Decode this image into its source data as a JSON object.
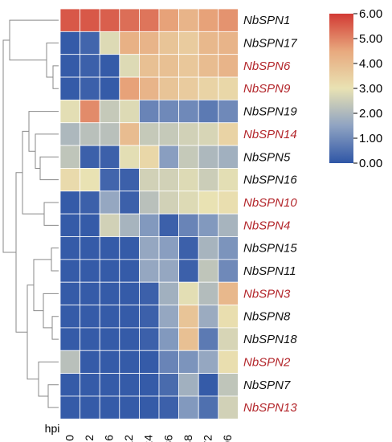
{
  "chart_data": {
    "type": "heatmap",
    "title": "",
    "xlabel": "hpi",
    "ylabel": "",
    "x": [
      "0",
      "2",
      "6",
      "12",
      "24",
      "36",
      "48",
      "72",
      "96"
    ],
    "rows": [
      {
        "gene": "NbSPN1",
        "highlight": false,
        "values": [
          5.6,
          5.6,
          5.5,
          5.3,
          5.2,
          4.6,
          4.2,
          4.6,
          4.8
        ]
      },
      {
        "gene": "NbSPN17",
        "highlight": false,
        "values": [
          0.1,
          0.3,
          2.8,
          4.3,
          4.2,
          3.8,
          3.6,
          4.1,
          4.2
        ]
      },
      {
        "gene": "NbSPN6",
        "highlight": true,
        "values": [
          0.1,
          0.2,
          0.1,
          2.8,
          3.9,
          3.9,
          3.7,
          4.0,
          4.2
        ]
      },
      {
        "gene": "NbSPN9",
        "highlight": true,
        "values": [
          0.1,
          0.2,
          0.1,
          4.6,
          4.2,
          3.8,
          3.6,
          3.4,
          3.3
        ]
      },
      {
        "gene": "NbSPN19",
        "highlight": false,
        "values": [
          2.9,
          4.9,
          2.4,
          2.8,
          0.9,
          1.0,
          1.0,
          0.7,
          1.0
        ]
      },
      {
        "gene": "NbSPN14",
        "highlight": true,
        "values": [
          2.0,
          2.2,
          2.2,
          4.0,
          2.4,
          2.4,
          2.6,
          2.7,
          3.4
        ]
      },
      {
        "gene": "NbSPN5",
        "highlight": false,
        "values": [
          2.3,
          0.2,
          0.2,
          2.9,
          3.3,
          1.4,
          2.4,
          2.0,
          1.8
        ]
      },
      {
        "gene": "NbSPN16",
        "highlight": false,
        "values": [
          3.2,
          3.0,
          0.3,
          0.2,
          2.6,
          2.6,
          2.8,
          2.5,
          2.9
        ]
      },
      {
        "gene": "NbSPN10",
        "highlight": true,
        "values": [
          0.1,
          0.2,
          1.6,
          0.2,
          2.2,
          2.6,
          2.8,
          3.0,
          3.1
        ]
      },
      {
        "gene": "NbSPN4",
        "highlight": true,
        "values": [
          0.1,
          0.1,
          2.6,
          1.9,
          1.3,
          0.2,
          0.9,
          1.3,
          1.9
        ]
      },
      {
        "gene": "NbSPN15",
        "highlight": false,
        "values": [
          0.1,
          0.1,
          0.1,
          0.1,
          1.6,
          1.4,
          0.2,
          1.9,
          1.2
        ]
      },
      {
        "gene": "NbSPN11",
        "highlight": false,
        "values": [
          0.1,
          0.1,
          0.1,
          0.1,
          1.6,
          1.6,
          0.2,
          2.3,
          1.0
        ]
      },
      {
        "gene": "NbSPN3",
        "highlight": true,
        "values": [
          0.1,
          0.1,
          0.1,
          0.1,
          0.2,
          1.8,
          2.9,
          2.1,
          4.1
        ]
      },
      {
        "gene": "NbSPN8",
        "highlight": false,
        "values": [
          0.1,
          0.1,
          0.1,
          0.1,
          0.2,
          1.6,
          3.8,
          1.7,
          3.1
        ]
      },
      {
        "gene": "NbSPN18",
        "highlight": false,
        "values": [
          0.1,
          0.1,
          0.1,
          0.1,
          0.2,
          1.3,
          3.9,
          0.7,
          2.7
        ]
      },
      {
        "gene": "NbSPN2",
        "highlight": true,
        "values": [
          2.2,
          0.1,
          0.1,
          0.1,
          0.1,
          0.9,
          1.2,
          1.6,
          3.1
        ]
      },
      {
        "gene": "NbSPN7",
        "highlight": false,
        "values": [
          0.1,
          0.1,
          0.1,
          0.1,
          0.1,
          0.4,
          1.8,
          0.1,
          2.3
        ]
      },
      {
        "gene": "NbSPN13",
        "highlight": true,
        "values": [
          0.1,
          0.1,
          0.1,
          0.1,
          0.1,
          0.2,
          1.3,
          0.5,
          2.6
        ]
      }
    ],
    "colorbar": {
      "range": [
        0,
        6
      ],
      "ticks": [
        "6.00",
        "5.00",
        "4.00",
        "3.00",
        "2.00",
        "1.00",
        "0.00"
      ],
      "colors": [
        "#2f56a6",
        "#8fa3c2",
        "#e9e2b3",
        "#e8a97e",
        "#d23a34"
      ]
    },
    "label_colors": {
      "normal": "#111111",
      "highlight": "#b3262b"
    },
    "dendrogram": "left, hierarchical clustering of rows",
    "legend_position": "top-right"
  }
}
